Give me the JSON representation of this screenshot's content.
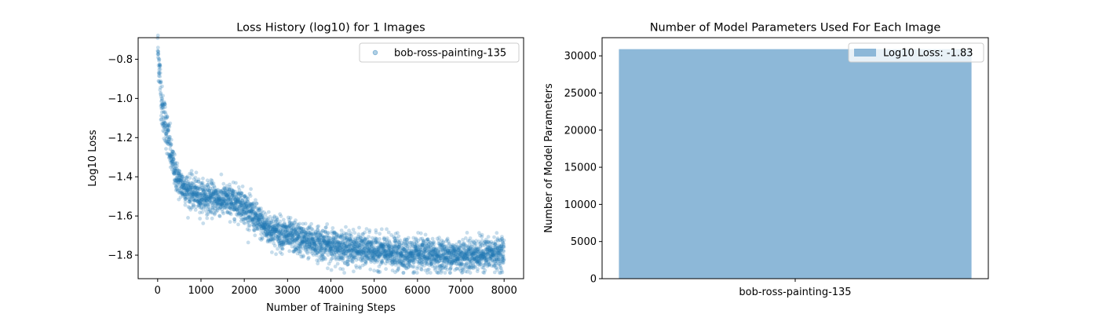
{
  "chart_data": [
    {
      "type": "scatter",
      "title": "Loss History (log10) for 1 Images",
      "xlabel": "Number of Training Steps",
      "ylabel": "Log10 Loss",
      "xlim": [
        -450,
        8450
      ],
      "ylim": [
        -1.92,
        -0.69
      ],
      "xticks": [
        0,
        1000,
        2000,
        3000,
        4000,
        5000,
        6000,
        7000,
        8000
      ],
      "xtick_labels": [
        "0",
        "1000",
        "2000",
        "3000",
        "4000",
        "5000",
        "6000",
        "7000",
        "8000"
      ],
      "yticks": [
        -1.8,
        -1.6,
        -1.4,
        -1.2,
        -1.0,
        -0.8
      ],
      "ytick_labels": [
        "−1.8",
        "−1.6",
        "−1.4",
        "−1.2",
        "−1.0",
        "−0.8"
      ],
      "legend": "top-right",
      "color": "#1f77b4",
      "alpha": 0.25,
      "series": [
        {
          "name": "bob-ross-painting-135",
          "x_range": [
            0,
            8000
          ],
          "trend": [
            {
              "x": 0,
              "y": -0.74
            },
            {
              "x": 50,
              "y": -0.88
            },
            {
              "x": 100,
              "y": -1.05
            },
            {
              "x": 200,
              "y": -1.15
            },
            {
              "x": 300,
              "y": -1.28
            },
            {
              "x": 400,
              "y": -1.38
            },
            {
              "x": 500,
              "y": -1.43
            },
            {
              "x": 700,
              "y": -1.47
            },
            {
              "x": 1000,
              "y": -1.5
            },
            {
              "x": 1500,
              "y": -1.52
            },
            {
              "x": 1900,
              "y": -1.53
            },
            {
              "x": 2200,
              "y": -1.6
            },
            {
              "x": 2500,
              "y": -1.66
            },
            {
              "x": 3000,
              "y": -1.7
            },
            {
              "x": 3500,
              "y": -1.73
            },
            {
              "x": 4000,
              "y": -1.75
            },
            {
              "x": 5000,
              "y": -1.78
            },
            {
              "x": 6000,
              "y": -1.8
            },
            {
              "x": 7000,
              "y": -1.8
            },
            {
              "x": 8000,
              "y": -1.79
            }
          ],
          "noise_std": 0.04
        }
      ]
    },
    {
      "type": "bar",
      "title": "Number of Model Parameters Used For Each Image",
      "xlabel": "",
      "ylabel": "Number of Model Parameters",
      "categories": [
        "bob-ross-painting-135"
      ],
      "values": [
        30900
      ],
      "ylim": [
        0,
        32445
      ],
      "yticks": [
        0,
        5000,
        10000,
        15000,
        20000,
        25000,
        30000
      ],
      "ytick_labels": [
        "0",
        "5000",
        "10000",
        "15000",
        "20000",
        "25000",
        "30000"
      ],
      "legend": "top-right",
      "legend_label": "Log10 Loss: -1.83",
      "color": "#8db8d8"
    }
  ]
}
